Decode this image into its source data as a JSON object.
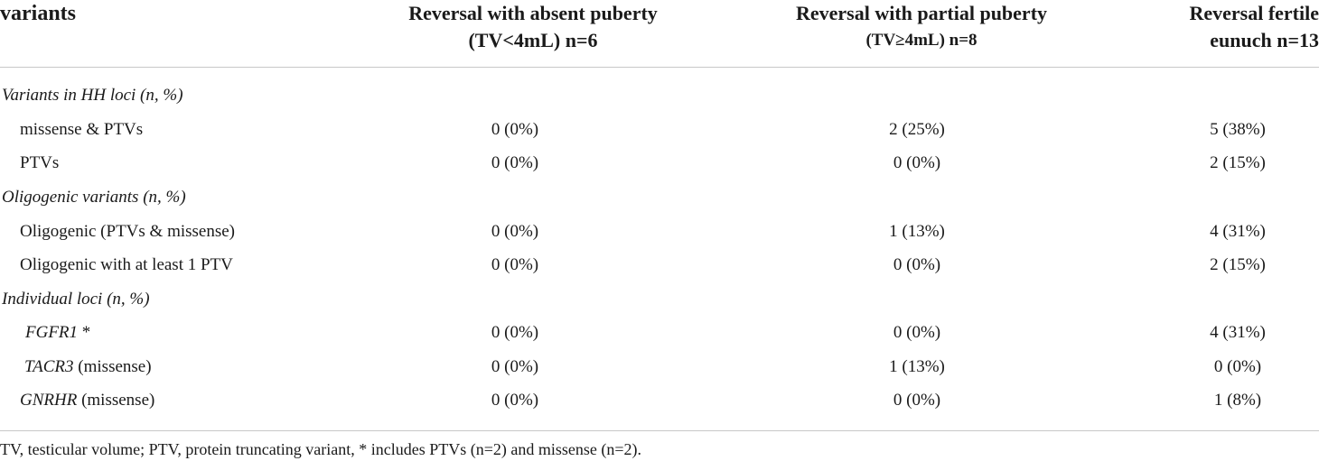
{
  "header": {
    "variants": "variants",
    "col1_line1": "Reversal with absent puberty",
    "col1_line2": "(TV<4mL) n=6",
    "col2_line1": "Reversal with partial puberty",
    "col2_line2": "(TV≥4mL) n=8",
    "col3_line1": "Reversal fertile",
    "col3_line2": "eunuch n=13"
  },
  "rows": [
    {
      "label": "Variants in HH loci (n, %)"
    },
    {
      "label": "missense & PTVs",
      "c1": "0 (0%)",
      "c2": "2 (25%)",
      "c3": "5 (38%)"
    },
    {
      "label": "PTVs",
      "c1": "0 (0%)",
      "c2": "0 (0%)",
      "c3": "2 (15%)"
    },
    {
      "label": "Oligogenic variants (n, %)"
    },
    {
      "label": "Oligogenic (PTVs & missense)",
      "c1": "0 (0%)",
      "c2": "1 (13%)",
      "c3": "4 (31%)"
    },
    {
      "label": "Oligogenic with at least 1 PTV",
      "c1": "0 (0%)",
      "c2": "0 (0%)",
      "c3": "2 (15%)"
    },
    {
      "label": "Individual loci (n, %)"
    },
    {
      "gene": "FGFR1",
      "suffix": " *",
      "c1": "0 (0%)",
      "c2": "0 (0%)",
      "c3": "4 (31%)"
    },
    {
      "gene": "TACR3",
      "suffix": " (missense)",
      "c1": "0 (0%)",
      "c2": "1 (13%)",
      "c3": "0 (0%)"
    },
    {
      "gene": "GNRHR",
      "suffix": " (missense)",
      "c1": "0 (0%)",
      "c2": "0 (0%)",
      "c3": "1 (8%)"
    }
  ],
  "footnote": "TV, testicular volume; PTV, protein truncating variant, * includes PTVs (n=2) and missense (n=2)."
}
